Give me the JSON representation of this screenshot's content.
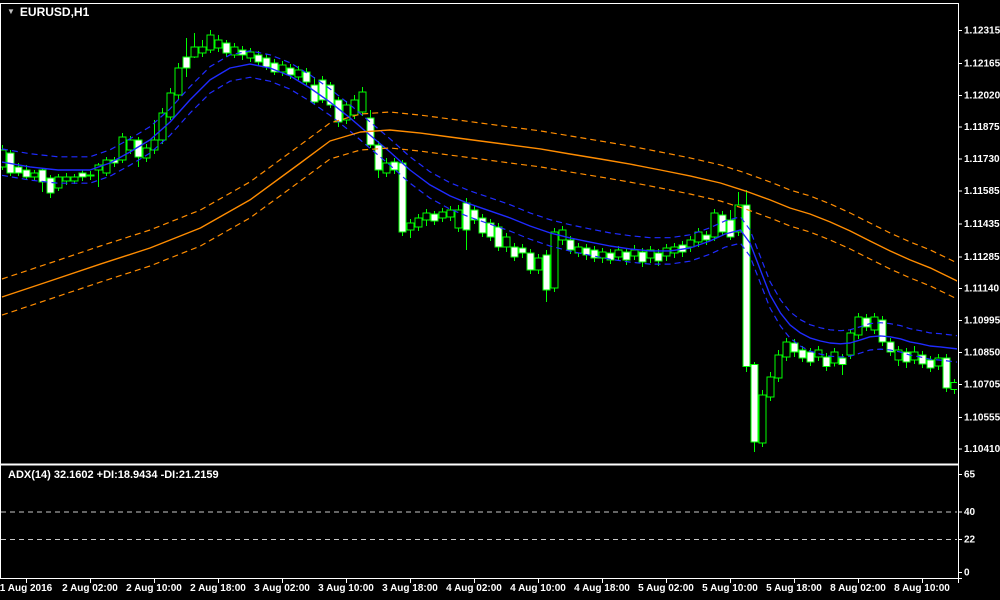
{
  "window": {
    "symbol_label": "EURUSD,H1",
    "dropdown_icon": "▼"
  },
  "colors": {
    "background": "#000000",
    "frame": "#FFFFFF",
    "axis_text": "#FFFFFF",
    "candle_outline": "#00FF00",
    "bull_fill": "#000000",
    "bear_fill": "#FFFFFF",
    "fast_envelope": "#1F2BFF",
    "slow_envelope": "#FF8C00",
    "panel_level_line": "#C8C8C8"
  },
  "indicator": {
    "label": "ADX(14) 32.1602 +DI:18.9434 -DI:21.2159",
    "name": "ADX",
    "period": 14,
    "adx": 32.1602,
    "plus_di": 18.9434,
    "minus_di": 21.2159,
    "axis_labels": [
      65,
      40,
      22,
      0
    ],
    "dashed_levels": [
      40,
      22
    ]
  },
  "chart_data": {
    "type": "candlestick",
    "symbol": "EURUSD",
    "timeframe": "H1",
    "grid": "off",
    "legend_position": "none",
    "y_range": [
      1.1035,
      1.12438
    ],
    "price_axis_labels": [
      "1.12315",
      "1.12165",
      "1.12020",
      "1.11875",
      "1.11730",
      "1.11585",
      "1.11435",
      "1.11285",
      "1.11140",
      "1.10995",
      "1.10850",
      "1.10705",
      "1.10555",
      "1.10410"
    ],
    "time_axis_labels": [
      "1 Aug 2016",
      "2 Aug 02:00",
      "2 Aug 10:00",
      "2 Aug 18:00",
      "3 Aug 02:00",
      "3 Aug 10:00",
      "3 Aug 18:00",
      "4 Aug 02:00",
      "4 Aug 10:00",
      "4 Aug 18:00",
      "5 Aug 02:00",
      "5 Aug 10:00",
      "5 Aug 18:00",
      "8 Aug 02:00",
      "8 Aug 10:00"
    ],
    "first_label_bar_index": 3,
    "label_every_n_bars": 8,
    "candles": [
      [
        1.11692,
        1.11792,
        1.11678,
        1.11769
      ],
      [
        1.11755,
        1.11769,
        1.11651,
        1.11664
      ],
      [
        1.11692,
        1.1171,
        1.11651,
        1.11664
      ],
      [
        1.11678,
        1.11701,
        1.11633,
        1.11646
      ],
      [
        1.11646,
        1.11678,
        1.11633,
        1.11664
      ],
      [
        1.11678,
        1.11687,
        1.11578,
        1.11624
      ],
      [
        1.11642,
        1.11655,
        1.11551,
        1.11574
      ],
      [
        1.11596,
        1.1166,
        1.11583,
        1.11646
      ],
      [
        1.11628,
        1.11664,
        1.1161,
        1.11646
      ],
      [
        1.11628,
        1.1166,
        1.11614,
        1.11646
      ],
      [
        1.11664,
        1.11678,
        1.11628,
        1.11646
      ],
      [
        1.11651,
        1.11674,
        1.11633,
        1.11655
      ],
      [
        1.11678,
        1.1171,
        1.11601,
        1.11701
      ],
      [
        1.11664,
        1.11737,
        1.11651,
        1.11724
      ],
      [
        1.11724,
        1.11737,
        1.11692,
        1.1171
      ],
      [
        1.11724,
        1.11846,
        1.1171,
        1.11828
      ],
      [
        1.11769,
        1.11833,
        1.11751,
        1.11815
      ],
      [
        1.11815,
        1.11828,
        1.11692,
        1.11737
      ],
      [
        1.11733,
        1.11796,
        1.11715,
        1.11778
      ],
      [
        1.11769,
        1.11906,
        1.11751,
        1.11815
      ],
      [
        1.11815,
        1.1196,
        1.11796,
        1.11937
      ],
      [
        1.11919,
        1.12051,
        1.11906,
        1.12028
      ],
      [
        1.12019,
        1.12165,
        1.12001,
        1.12142
      ],
      [
        1.12192,
        1.12279,
        1.12101,
        1.12142
      ],
      [
        1.12192,
        1.12301,
        1.12188,
        1.12238
      ],
      [
        1.1221,
        1.1227,
        1.12192,
        1.12238
      ],
      [
        1.12224,
        1.12315,
        1.1221,
        1.12292
      ],
      [
        1.12233,
        1.12292,
        1.12215,
        1.1227
      ],
      [
        1.12256,
        1.1227,
        1.12192,
        1.1221
      ],
      [
        1.12201,
        1.12256,
        1.12188,
        1.12238
      ],
      [
        1.12224,
        1.12242,
        1.12179,
        1.12201
      ],
      [
        1.12188,
        1.12233,
        1.12169,
        1.12215
      ],
      [
        1.12201,
        1.12219,
        1.12151,
        1.12169
      ],
      [
        1.12188,
        1.12206,
        1.12133,
        1.12147
      ],
      [
        1.12165,
        1.12183,
        1.1211,
        1.12124
      ],
      [
        1.12124,
        1.12174,
        1.12106,
        1.12156
      ],
      [
        1.12142,
        1.1216,
        1.12092,
        1.1211
      ],
      [
        1.12101,
        1.12151,
        1.12088,
        1.12133
      ],
      [
        1.12124,
        1.12142,
        1.12065,
        1.12078
      ],
      [
        1.12065,
        1.12101,
        1.11978,
        1.11987
      ],
      [
        1.12088,
        1.12106,
        1.11983,
        1.11997
      ],
      [
        1.12065,
        1.12078,
        1.1196,
        1.11974
      ],
      [
        1.11997,
        1.1201,
        1.11874,
        1.11897
      ],
      [
        1.11906,
        1.11992,
        1.11887,
        1.11974
      ],
      [
        1.11928,
        1.12019,
        1.1191,
        1.11997
      ],
      [
        1.11942,
        1.12056,
        1.11924,
        1.12033
      ],
      [
        1.11915,
        1.11951,
        1.11778,
        1.11792
      ],
      [
        1.11792,
        1.1181,
        1.11642,
        1.11678
      ],
      [
        1.11664,
        1.11733,
        1.11646,
        1.1171
      ],
      [
        1.11715,
        1.11733,
        1.1166,
        1.11678
      ],
      [
        1.1171,
        1.11724,
        1.11378,
        1.11396
      ],
      [
        1.11405,
        1.11455,
        1.11369,
        1.11437
      ],
      [
        1.11419,
        1.11478,
        1.11401,
        1.1146
      ],
      [
        1.11451,
        1.11501,
        1.11423,
        1.11483
      ],
      [
        1.11478,
        1.11492,
        1.11428,
        1.11446
      ],
      [
        1.1146,
        1.11505,
        1.11442,
        1.11487
      ],
      [
        1.11464,
        1.11514,
        1.11446,
        1.11496
      ],
      [
        1.11414,
        1.11519,
        1.11396,
        1.11496
      ],
      [
        1.11528,
        1.11551,
        1.11314,
        1.11405
      ],
      [
        1.11496,
        1.11514,
        1.11432,
        1.11451
      ],
      [
        1.1146,
        1.11478,
        1.11373,
        1.11392
      ],
      [
        1.11437,
        1.11455,
        1.11355,
        1.11373
      ],
      [
        1.11419,
        1.11437,
        1.1131,
        1.11328
      ],
      [
        1.11328,
        1.11392,
        1.11305,
        1.11373
      ],
      [
        1.11328,
        1.11346,
        1.11264,
        1.11282
      ],
      [
        1.11323,
        1.11341,
        1.11278,
        1.113
      ],
      [
        1.113,
        1.11319,
        1.11205,
        1.11223
      ],
      [
        1.11223,
        1.11296,
        1.11205,
        1.11278
      ],
      [
        1.11291,
        1.11314,
        1.11078,
        1.11132
      ],
      [
        1.11141,
        1.11414,
        1.11123,
        1.11396
      ],
      [
        1.1136,
        1.11423,
        1.11337,
        1.11405
      ],
      [
        1.1136,
        1.11378,
        1.11296,
        1.11314
      ],
      [
        1.113,
        1.11346,
        1.11282,
        1.11328
      ],
      [
        1.11323,
        1.11341,
        1.11269,
        1.11291
      ],
      [
        1.11314,
        1.11332,
        1.1126,
        1.11278
      ],
      [
        1.11278,
        1.11323,
        1.11255,
        1.11305
      ],
      [
        1.113,
        1.11319,
        1.11251,
        1.11269
      ],
      [
        1.11282,
        1.11332,
        1.11264,
        1.11314
      ],
      [
        1.11305,
        1.11323,
        1.11246,
        1.11269
      ],
      [
        1.11287,
        1.11337,
        1.11269,
        1.11314
      ],
      [
        1.11305,
        1.11323,
        1.11237,
        1.1126
      ],
      [
        1.11278,
        1.11332,
        1.11255,
        1.11314
      ],
      [
        1.113,
        1.11319,
        1.11242,
        1.11264
      ],
      [
        1.11287,
        1.11341,
        1.11264,
        1.11323
      ],
      [
        1.113,
        1.11346,
        1.11278,
        1.11328
      ],
      [
        1.11337,
        1.11355,
        1.11282,
        1.11305
      ],
      [
        1.11328,
        1.11378,
        1.11305,
        1.1136
      ],
      [
        1.11351,
        1.11414,
        1.11328,
        1.11396
      ],
      [
        1.11382,
        1.11401,
        1.11337,
        1.1136
      ],
      [
        1.11373,
        1.11501,
        1.11355,
        1.11483
      ],
      [
        1.11473,
        1.11492,
        1.11378,
        1.11396
      ],
      [
        1.11451,
        1.11496,
        1.1136,
        1.11373
      ],
      [
        1.11396,
        1.11578,
        1.11378,
        1.11519
      ],
      [
        1.11519,
        1.11587,
        1.1076,
        1.10783
      ],
      [
        1.10792,
        1.10805,
        1.10395,
        1.10441
      ],
      [
        1.10436,
        1.10678,
        1.10418,
        1.10655
      ],
      [
        1.10645,
        1.1076,
        1.10627,
        1.10737
      ],
      [
        1.10732,
        1.10859,
        1.10714,
        1.10837
      ],
      [
        1.10828,
        1.10914,
        1.1081,
        1.10896
      ],
      [
        1.10891,
        1.10909,
        1.10828,
        1.1085
      ],
      [
        1.10859,
        1.10877,
        1.10805,
        1.10823
      ],
      [
        1.1085,
        1.10868,
        1.10787,
        1.10805
      ],
      [
        1.10828,
        1.10877,
        1.1081,
        1.10859
      ],
      [
        1.10828,
        1.10846,
        1.10764,
        1.10783
      ],
      [
        1.10801,
        1.10868,
        1.10783,
        1.1085
      ],
      [
        1.10823,
        1.10841,
        1.10746,
        1.10792
      ],
      [
        1.10837,
        1.10955,
        1.10819,
        1.10937
      ],
      [
        1.10927,
        1.11028,
        1.10909,
        1.11009
      ],
      [
        1.11005,
        1.11023,
        1.10946,
        1.10964
      ],
      [
        1.1095,
        1.11028,
        1.10932,
        1.11009
      ],
      [
        1.10996,
        1.11014,
        1.10877,
        1.10896
      ],
      [
        1.10896,
        1.10914,
        1.10832,
        1.1085
      ],
      [
        1.10814,
        1.10877,
        1.10787,
        1.10859
      ],
      [
        1.1085,
        1.10868,
        1.10778,
        1.10805
      ],
      [
        1.10814,
        1.10877,
        1.10796,
        1.1085
      ],
      [
        1.10837,
        1.10855,
        1.10778,
        1.10796
      ],
      [
        1.10814,
        1.10832,
        1.1076,
        1.10778
      ],
      [
        1.10787,
        1.10841,
        1.10769,
        1.10823
      ],
      [
        1.10823,
        1.10841,
        1.10668,
        1.10687
      ],
      [
        1.10678,
        1.10728,
        1.10659,
        1.1071
      ]
    ],
    "overlays": [
      {
        "name": "fast-ma-envelope",
        "color": "#1F2BFF",
        "deviation": 0.0006,
        "points": [
          [
            0,
            1.11714
          ],
          [
            3.5,
            1.11692
          ],
          [
            7,
            1.11678
          ],
          [
            11,
            1.11678
          ],
          [
            13.5,
            1.1171
          ],
          [
            16,
            1.1176
          ],
          [
            18.5,
            1.11815
          ],
          [
            21,
            1.11896
          ],
          [
            23.5,
            1.11997
          ],
          [
            26,
            1.12088
          ],
          [
            28.5,
            1.12142
          ],
          [
            31,
            1.1216
          ],
          [
            33.5,
            1.12142
          ],
          [
            36,
            1.12106
          ],
          [
            38.5,
            1.12051
          ],
          [
            41,
            1.11987
          ],
          [
            43.5,
            1.11915
          ],
          [
            46,
            1.11837
          ],
          [
            48.5,
            1.1176
          ],
          [
            51,
            1.11678
          ],
          [
            53.5,
            1.1161
          ],
          [
            56,
            1.1156
          ],
          [
            58.5,
            1.11523
          ],
          [
            61,
            1.11492
          ],
          [
            63.5,
            1.1146
          ],
          [
            66,
            1.11423
          ],
          [
            68.5,
            1.11392
          ],
          [
            71,
            1.11369
          ],
          [
            73.5,
            1.1135
          ],
          [
            76,
            1.11332
          ],
          [
            78.5,
            1.11319
          ],
          [
            81,
            1.1131
          ],
          [
            83.5,
            1.1131
          ],
          [
            86,
            1.11323
          ],
          [
            88.5,
            1.11355
          ],
          [
            90.4,
            1.11387
          ],
          [
            92.3,
            1.11405
          ],
          [
            93.5,
            1.11346
          ],
          [
            94.8,
            1.11223
          ],
          [
            96,
            1.1111
          ],
          [
            97.3,
            1.11028
          ],
          [
            98.5,
            1.10973
          ],
          [
            99.8,
            1.10937
          ],
          [
            101,
            1.10914
          ],
          [
            102.3,
            1.109
          ],
          [
            103.5,
            1.10891
          ],
          [
            104.8,
            1.10887
          ],
          [
            106,
            1.10891
          ],
          [
            107.3,
            1.10905
          ],
          [
            108.5,
            1.10919
          ],
          [
            109.8,
            1.10923
          ],
          [
            111,
            1.10919
          ],
          [
            112.3,
            1.1091
          ],
          [
            113.5,
            1.10896
          ],
          [
            114.8,
            1.10887
          ],
          [
            116,
            1.10877
          ],
          [
            117.3,
            1.10873
          ],
          [
            119.4,
            1.10864
          ]
        ]
      },
      {
        "name": "slow-ma-envelope",
        "color": "#FF8C00",
        "deviation": 0.00082,
        "points": [
          [
            0,
            1.111
          ],
          [
            6,
            1.11173
          ],
          [
            12.3,
            1.1125
          ],
          [
            18.5,
            1.11323
          ],
          [
            24.8,
            1.11414
          ],
          [
            31,
            1.11542
          ],
          [
            37.3,
            1.1171
          ],
          [
            41,
            1.1181
          ],
          [
            44.8,
            1.11851
          ],
          [
            48.5,
            1.1186
          ],
          [
            52.3,
            1.11846
          ],
          [
            56,
            1.11828
          ],
          [
            59.8,
            1.1181
          ],
          [
            63.5,
            1.11792
          ],
          [
            67.3,
            1.11774
          ],
          [
            71,
            1.11751
          ],
          [
            74.8,
            1.11728
          ],
          [
            78.5,
            1.11705
          ],
          [
            82.3,
            1.11678
          ],
          [
            86,
            1.11651
          ],
          [
            89.8,
            1.11619
          ],
          [
            92.9,
            1.11583
          ],
          [
            96,
            1.11542
          ],
          [
            98.5,
            1.11505
          ],
          [
            101,
            1.11478
          ],
          [
            103.5,
            1.11442
          ],
          [
            106,
            1.11401
          ],
          [
            108.5,
            1.11355
          ],
          [
            111,
            1.1131
          ],
          [
            113.5,
            1.11269
          ],
          [
            116,
            1.11233
          ],
          [
            119.4,
            1.11173
          ]
        ]
      }
    ]
  }
}
